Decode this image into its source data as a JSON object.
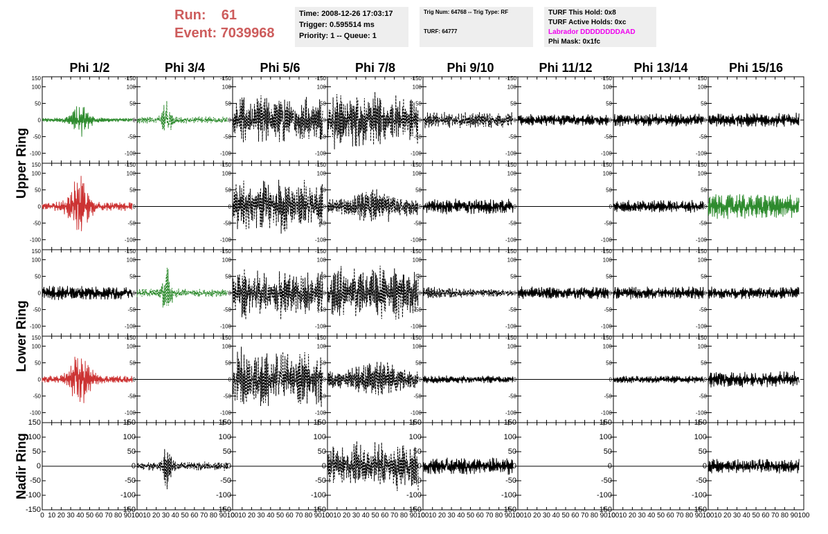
{
  "header": {
    "run_label": "Run:",
    "run_value": "61",
    "event_label": "Event:",
    "event_value": "7039968",
    "time_line": "Time: 2008-12-26 17:03:17",
    "trigger_line": "Trigger: 0.595514 ms",
    "priority_line": "Priority: 1 -- Queue: 1",
    "trig_line": "Trig Num: 64768 -- Trig Type: RF",
    "turf_line": "TURF: 64777",
    "turf_hold": "TURF This Hold: 0x8",
    "turf_active": "TURF Active Holds: 0xc",
    "labrador": "Labrador DDDDDDDDAAD",
    "phi_mask": "Phi Mask: 0x1fc"
  },
  "colors": {
    "run_text": "#cd5c5c",
    "labrador_text": "#ee00ee",
    "green": "#2e8b2e",
    "red": "#cc3333",
    "black": "#000000"
  },
  "chart_data": {
    "type": "line",
    "columns": [
      "Phi 1/2",
      "Phi 3/4",
      "Phi 5/6",
      "Phi 7/8",
      "Phi 9/10",
      "Phi 11/12",
      "Phi 13/14",
      "Phi 15/16"
    ],
    "rows": [
      "Upper Ring",
      "Lower Ring",
      "Nadir Ring"
    ],
    "ring_row_spans": [
      2,
      2,
      1
    ],
    "xlim": [
      0,
      100
    ],
    "ylim_main": [
      -130,
      130
    ],
    "ylim_nadir": [
      -150,
      150
    ],
    "x_ticks": [
      "0",
      "10",
      "20",
      "30",
      "40",
      "50",
      "60",
      "70",
      "80",
      "90",
      "100"
    ],
    "y_ticks_main": [
      "150",
      "100",
      "50",
      "0",
      "-50",
      "-100"
    ],
    "y_ticks_nadir": [
      "150",
      "100",
      "50",
      "0",
      "-50",
      "-100",
      "-150"
    ],
    "cell_tick_labels": {
      "col1_top": "150",
      "col2to7_top": "-150"
    },
    "traces": [
      [
        "green",
        "green",
        "black",
        "black",
        "black",
        "black",
        "black",
        "black"
      ],
      [
        "red",
        "flat",
        "black",
        "black",
        "black",
        "black",
        "black",
        "green"
      ],
      [
        "black",
        "green",
        "black",
        "black",
        "black",
        "black",
        "black",
        "black"
      ],
      [
        "red",
        "flat",
        "black",
        "black",
        "black",
        "black",
        "black",
        "black"
      ],
      [
        "flat",
        "black",
        "flat",
        "black",
        "black",
        "black",
        "black",
        "black"
      ]
    ],
    "styles": [
      [
        "solid",
        "dashed",
        "dashed",
        "dashed",
        "dashed",
        "solid",
        "solid",
        "solid"
      ],
      [
        "solid",
        "solid",
        "dashed",
        "dashed",
        "solid",
        "solid",
        "solid",
        "solid"
      ],
      [
        "solid",
        "dashed",
        "dashed",
        "dashed",
        "dashed",
        "solid",
        "solid",
        "solid"
      ],
      [
        "solid",
        "solid",
        "dashed",
        "dashed",
        "solid",
        "solid",
        "solid",
        "solid"
      ],
      [
        "solid",
        "dashed",
        "solid",
        "dashed",
        "solid",
        "solid",
        "solid",
        "solid"
      ]
    ],
    "amplitude": [
      [
        45,
        60,
        80,
        95,
        25,
        18,
        20,
        22
      ],
      [
        90,
        0,
        90,
        55,
        25,
        0,
        20,
        40
      ],
      [
        22,
        75,
        85,
        90,
        20,
        20,
        20,
        20
      ],
      [
        75,
        0,
        100,
        60,
        12,
        0,
        12,
        25
      ],
      [
        0,
        90,
        0,
        90,
        30,
        0,
        0,
        25
      ]
    ],
    "envelope": [
      [
        "pulse",
        "spike",
        "wide",
        "wide",
        "flat",
        "flat",
        "flat",
        "flat"
      ],
      [
        "pulse",
        "none",
        "wide",
        "mid",
        "flat",
        "none",
        "flat",
        "flat"
      ],
      [
        "flat",
        "spike",
        "wide",
        "wide",
        "decay",
        "flat",
        "flat",
        "flat"
      ],
      [
        "pulse",
        "none",
        "wide",
        "mid",
        "flat",
        "none",
        "flat",
        "flat"
      ],
      [
        "none",
        "spike",
        "none",
        "wide",
        "flat",
        "none",
        "none",
        "flat"
      ]
    ]
  }
}
